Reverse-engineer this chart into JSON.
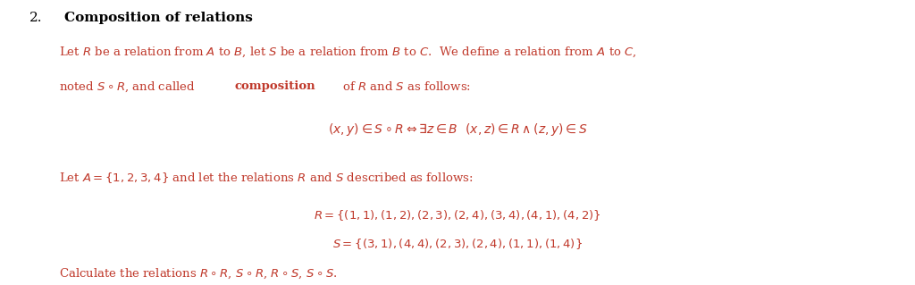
{
  "bg_color": "#ffffff",
  "text_color": "#c0392b",
  "heading_color": "#000000",
  "figsize": [
    10.24,
    3.19
  ],
  "dpi": 100,
  "fs_heading": 11,
  "fs_body": 9.5,
  "fs_formula": 10
}
